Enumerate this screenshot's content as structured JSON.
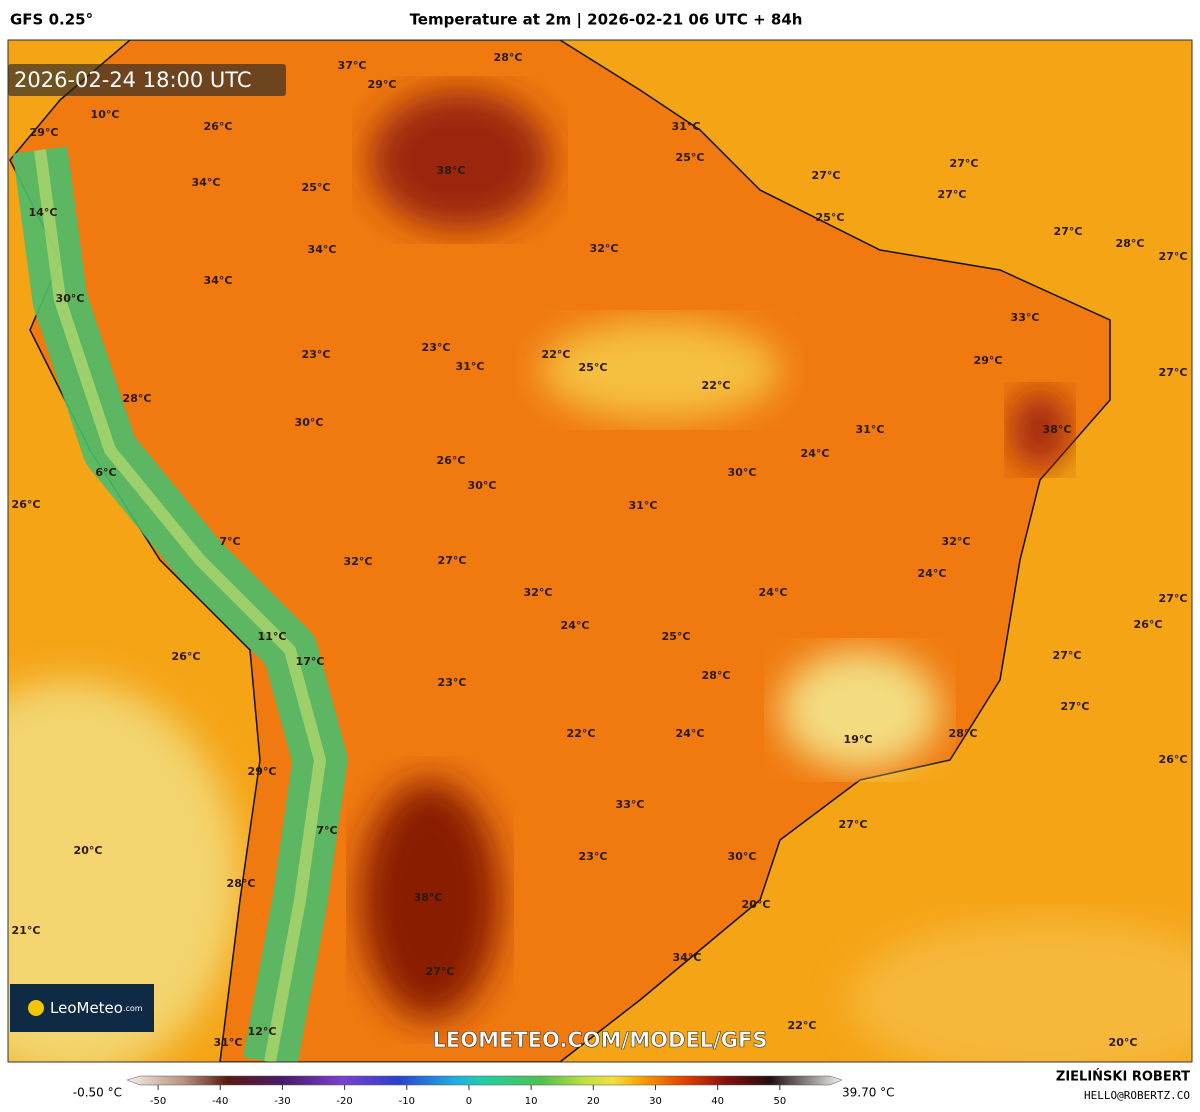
{
  "header": {
    "model": "GFS 0.25°",
    "title": "Temperature at 2m | 2026-02-21 06 UTC + 84h"
  },
  "valid_time": "2026-02-24 18:00 UTC",
  "watermark": "LEOMETEO.COM/MODEL/GFS",
  "logo": {
    "name": "LeoMeteo",
    "suffix": ".com"
  },
  "author": {
    "name": "ZIELIŃSKI ROBERT",
    "email": "HELLO@ROBERTZ.CO"
  },
  "labels": [
    "37°C",
    "29°C",
    "28°C",
    "10°C",
    "29°C",
    "26°C",
    "31°C",
    "38°C",
    "25°C",
    "27°C",
    "27°C",
    "34°C",
    "25°C",
    "27°C",
    "14°C",
    "25°C",
    "27°C",
    "28°C",
    "34°C",
    "32°C",
    "27°C",
    "34°C",
    "30°C",
    "33°C",
    "23°C",
    "22°C",
    "23°C",
    "29°C",
    "31°C",
    "25°C",
    "27°C",
    "22°C",
    "28°C",
    "30°C",
    "31°C",
    "38°C",
    "24°C",
    "26°C",
    "6°C",
    "30°C",
    "30°C",
    "26°C",
    "31°C",
    "32°C",
    "7°C",
    "27°C",
    "32°C",
    "24°C",
    "24°C",
    "32°C",
    "27°C",
    "24°C",
    "26°C",
    "11°C",
    "25°C",
    "17°C",
    "26°C",
    "27°C",
    "28°C",
    "23°C",
    "27°C",
    "22°C",
    "24°C",
    "28°C",
    "19°C",
    "26°C",
    "29°C",
    "33°C",
    "7°C",
    "27°C",
    "20°C",
    "23°C",
    "30°C",
    "28°C",
    "38°C",
    "20°C",
    "21°C",
    "27°C",
    "34°C",
    "22°C",
    "31°C",
    "12°C",
    "20°C"
  ],
  "colorbar": {
    "min_label": "-0.50 °C",
    "max_label": "39.70 °C",
    "lim": [
      -55,
      60
    ],
    "ticks": [
      -50,
      -40,
      -30,
      -20,
      -10,
      0,
      10,
      20,
      30,
      40,
      50
    ]
  }
}
